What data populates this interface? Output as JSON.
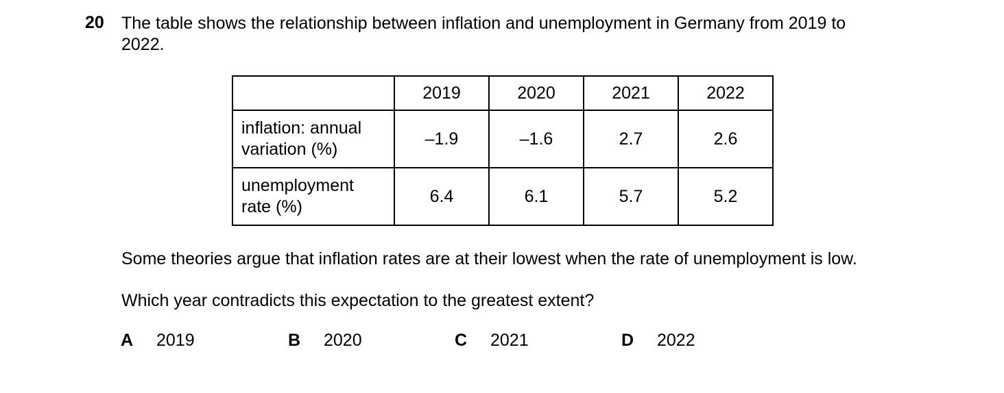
{
  "question": {
    "number": "20",
    "stem_line1": "The table shows the relationship between inflation and unemployment in Germany from 2019 to",
    "stem_line2": "2022."
  },
  "table": {
    "years": [
      "2019",
      "2020",
      "2021",
      "2022"
    ],
    "rows": [
      {
        "label_line1": "inflation: annual",
        "label_line2": "variation (%)",
        "values": [
          "–1.9",
          "–1.6",
          "2.7",
          "2.6"
        ]
      },
      {
        "label_line1": "unemployment",
        "label_line2": "rate (%)",
        "values": [
          "6.4",
          "6.1",
          "5.7",
          "5.2"
        ]
      }
    ]
  },
  "paragraph1": "Some theories argue that inflation rates are at their lowest when the rate of unemployment is low.",
  "paragraph2": "Which year contradicts this expectation to the greatest extent?",
  "options": [
    {
      "letter": "A",
      "text": "2019"
    },
    {
      "letter": "B",
      "text": "2020"
    },
    {
      "letter": "C",
      "text": "2021"
    },
    {
      "letter": "D",
      "text": "2022"
    }
  ]
}
